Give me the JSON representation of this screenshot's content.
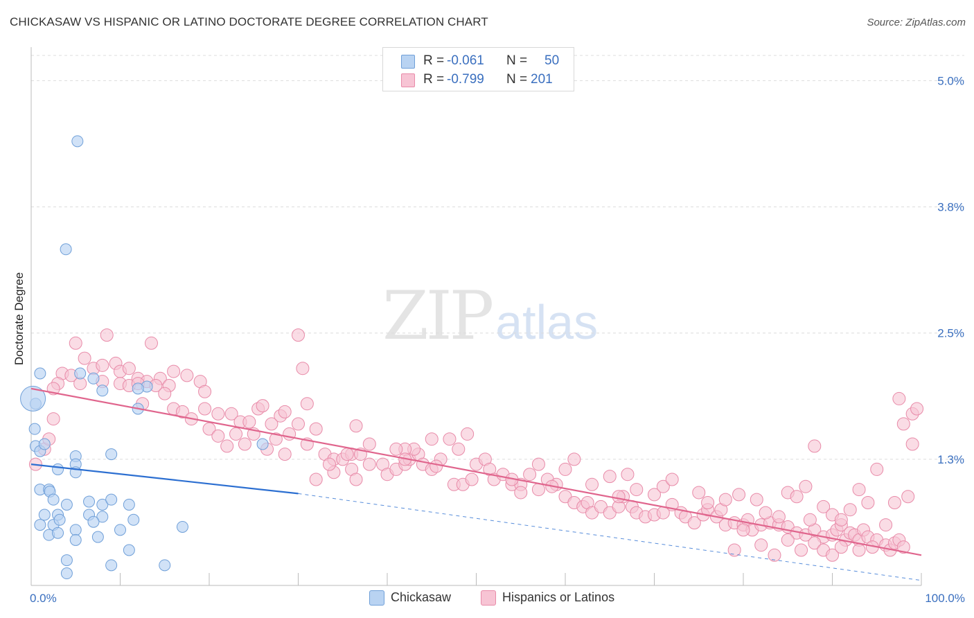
{
  "title": "CHICKASAW VS HISPANIC OR LATINO DOCTORATE DEGREE CORRELATION CHART",
  "source": "Source: ZipAtlas.com",
  "watermark": {
    "zip": "ZIP",
    "atlas": "atlas"
  },
  "legend_top": {
    "r_label": "R =",
    "n_label": "N =",
    "rows": [
      {
        "r": "-0.061",
        "n": "50"
      },
      {
        "r": "-0.799",
        "n": "201"
      }
    ]
  },
  "legend_bottom": [
    "Chickasaw",
    "Hispanics or Latinos"
  ],
  "chart_data": {
    "type": "scatter",
    "title": "CHICKASAW VS HISPANIC OR LATINO DOCTORATE DEGREE CORRELATION CHART",
    "xlabel": "",
    "ylabel": "Doctorate Degree",
    "xlim": [
      0,
      100
    ],
    "ylim": [
      0,
      5.25
    ],
    "x_tick_labels": [
      "0.0%",
      "100.0%"
    ],
    "y_ticks": [
      1.25,
      2.5,
      3.75,
      5.0
    ],
    "y_tick_labels": [
      "1.3%",
      "2.5%",
      "3.8%",
      "5.0%"
    ],
    "colors": {
      "chickasaw_fill": "#b9d3f2",
      "chickasaw_stroke": "#6f9fd8",
      "chickasaw_line": "#2c6fd1",
      "hispanic_fill": "#f7c4d4",
      "hispanic_stroke": "#e88aa8",
      "hispanic_line": "#e0658d",
      "axis_text": "#3a6fbf"
    },
    "series": [
      {
        "name": "Chickasaw",
        "r": -0.061,
        "n": 50,
        "trend": {
          "x0": 0,
          "y0": 1.2,
          "x1": 30,
          "y1": 0.91,
          "dash_to_x": 100,
          "dash_to_y": 0.05
        },
        "points": [
          [
            5.2,
            4.4
          ],
          [
            3.9,
            3.33
          ],
          [
            1,
            2.1
          ],
          [
            5.5,
            2.1
          ],
          [
            7,
            2.05
          ],
          [
            8,
            1.93
          ],
          [
            13,
            1.97
          ],
          [
            12,
            1.95
          ],
          [
            0.5,
            1.8
          ],
          [
            12,
            1.75
          ],
          [
            0.4,
            1.55
          ],
          [
            0.5,
            1.38
          ],
          [
            1,
            1.33
          ],
          [
            1.5,
            1.4
          ],
          [
            5,
            1.28
          ],
          [
            9,
            1.3
          ],
          [
            26,
            1.4
          ],
          [
            5,
            1.2
          ],
          [
            3,
            1.15
          ],
          [
            5,
            1.12
          ],
          [
            1,
            0.95
          ],
          [
            2,
            0.95
          ],
          [
            2.1,
            0.93
          ],
          [
            2.5,
            0.85
          ],
          [
            4,
            0.8
          ],
          [
            6.5,
            0.83
          ],
          [
            8,
            0.8
          ],
          [
            9,
            0.85
          ],
          [
            11,
            0.8
          ],
          [
            1.5,
            0.7
          ],
          [
            3,
            0.7
          ],
          [
            6.5,
            0.7
          ],
          [
            8,
            0.68
          ],
          [
            1,
            0.6
          ],
          [
            2.5,
            0.6
          ],
          [
            3.2,
            0.65
          ],
          [
            5,
            0.55
          ],
          [
            7,
            0.63
          ],
          [
            11.5,
            0.65
          ],
          [
            17,
            0.58
          ],
          [
            2,
            0.5
          ],
          [
            3,
            0.52
          ],
          [
            5,
            0.45
          ],
          [
            7.5,
            0.48
          ],
          [
            10,
            0.55
          ],
          [
            11,
            0.35
          ],
          [
            4,
            0.25
          ],
          [
            9,
            0.2
          ],
          [
            15,
            0.2
          ],
          [
            4,
            0.12
          ]
        ],
        "sizes_note": "one large point at x=0.2,y=1.85",
        "large_point": [
          0.2,
          1.85
        ]
      },
      {
        "name": "Hispanics or Latinos",
        "r": -0.799,
        "n": 201,
        "trend": {
          "x0": 0,
          "y0": 1.95,
          "x1": 100,
          "y1": 0.3
        },
        "points": [
          [
            5,
            2.4
          ],
          [
            8.5,
            2.48
          ],
          [
            30,
            2.48
          ],
          [
            13.5,
            2.4
          ],
          [
            6,
            2.25
          ],
          [
            9.5,
            2.2
          ],
          [
            7,
            2.15
          ],
          [
            8,
            2.18
          ],
          [
            10,
            2.12
          ],
          [
            11,
            2.15
          ],
          [
            12,
            2.05
          ],
          [
            13,
            2.02
          ],
          [
            14.5,
            2.05
          ],
          [
            16,
            2.12
          ],
          [
            17.5,
            2.08
          ],
          [
            19,
            2.02
          ],
          [
            3.5,
            2.1
          ],
          [
            4.5,
            2.08
          ],
          [
            3,
            2.0
          ],
          [
            5.5,
            2.0
          ],
          [
            2.5,
            1.95
          ],
          [
            8,
            2.02
          ],
          [
            10,
            2.0
          ],
          [
            11,
            1.98
          ],
          [
            12,
            2.0
          ],
          [
            14,
            1.98
          ],
          [
            15.5,
            1.98
          ],
          [
            19.5,
            1.92
          ],
          [
            30.5,
            2.15
          ],
          [
            0.5,
            1.2
          ],
          [
            1.5,
            1.35
          ],
          [
            2,
            1.45
          ],
          [
            2.5,
            1.65
          ],
          [
            12.5,
            1.8
          ],
          [
            15,
            1.9
          ],
          [
            16,
            1.75
          ],
          [
            17,
            1.72
          ],
          [
            18,
            1.65
          ],
          [
            19.5,
            1.75
          ],
          [
            21,
            1.7
          ],
          [
            22.5,
            1.7
          ],
          [
            23.5,
            1.62
          ],
          [
            24.5,
            1.62
          ],
          [
            25.5,
            1.75
          ],
          [
            26,
            1.78
          ],
          [
            27,
            1.6
          ],
          [
            28,
            1.68
          ],
          [
            28.5,
            1.72
          ],
          [
            29,
            1.5
          ],
          [
            30,
            1.6
          ],
          [
            31,
            1.8
          ],
          [
            32,
            1.55
          ],
          [
            20,
            1.55
          ],
          [
            21,
            1.48
          ],
          [
            22,
            1.38
          ],
          [
            23,
            1.5
          ],
          [
            24,
            1.4
          ],
          [
            25,
            1.5
          ],
          [
            26.5,
            1.35
          ],
          [
            27.5,
            1.45
          ],
          [
            28.5,
            1.3
          ],
          [
            31,
            1.4
          ],
          [
            33,
            1.3
          ],
          [
            34,
            1.25
          ],
          [
            35,
            1.25
          ],
          [
            36,
            1.3
          ],
          [
            37,
            1.3
          ],
          [
            38,
            1.2
          ],
          [
            36,
            1.15
          ],
          [
            34,
            1.12
          ],
          [
            36.5,
            1.05
          ],
          [
            32,
            1.05
          ],
          [
            33.5,
            1.2
          ],
          [
            35.5,
            1.3
          ],
          [
            36.5,
            1.58
          ],
          [
            38,
            1.4
          ],
          [
            39.5,
            1.2
          ],
          [
            40,
            1.1
          ],
          [
            41,
            1.15
          ],
          [
            42,
            1.2
          ],
          [
            42.5,
            1.25
          ],
          [
            43.5,
            1.3
          ],
          [
            44,
            1.2
          ],
          [
            45,
            1.15
          ],
          [
            46,
            1.25
          ],
          [
            43,
            1.35
          ],
          [
            45,
            1.45
          ],
          [
            42,
            1.35
          ],
          [
            41,
            1.35
          ],
          [
            42,
            1.25
          ],
          [
            47,
            1.45
          ],
          [
            48,
            1.35
          ],
          [
            49,
            1.5
          ],
          [
            45.5,
            1.18
          ],
          [
            47.5,
            1.0
          ],
          [
            48.5,
            1.0
          ],
          [
            49.5,
            1.05
          ],
          [
            50,
            1.2
          ],
          [
            51,
            1.25
          ],
          [
            51.5,
            1.15
          ],
          [
            52,
            1.05
          ],
          [
            53,
            1.1
          ],
          [
            54,
            1.0
          ],
          [
            55,
            1.0
          ],
          [
            56,
            1.1
          ],
          [
            57,
            1.2
          ],
          [
            58,
            1.05
          ],
          [
            59,
            1.0
          ],
          [
            60,
            1.15
          ],
          [
            55,
            0.92
          ],
          [
            54,
            1.05
          ],
          [
            57,
            0.95
          ],
          [
            58.5,
            0.98
          ],
          [
            60,
            0.88
          ],
          [
            61,
            0.82
          ],
          [
            62,
            0.78
          ],
          [
            62.5,
            0.82
          ],
          [
            63,
            0.72
          ],
          [
            64,
            0.78
          ],
          [
            65,
            0.72
          ],
          [
            66,
            0.78
          ],
          [
            66.5,
            0.88
          ],
          [
            67.5,
            0.78
          ],
          [
            68,
            0.72
          ],
          [
            69,
            0.68
          ],
          [
            70,
            0.7
          ],
          [
            71,
            0.72
          ],
          [
            72,
            0.8
          ],
          [
            73,
            0.72
          ],
          [
            73.5,
            0.68
          ],
          [
            74.5,
            0.62
          ],
          [
            75.5,
            0.7
          ],
          [
            76,
            0.75
          ],
          [
            77,
            0.68
          ],
          [
            78,
            0.6
          ],
          [
            79,
            0.62
          ],
          [
            80,
            0.6
          ],
          [
            80.5,
            0.65
          ],
          [
            81,
            0.55
          ],
          [
            82,
            0.6
          ],
          [
            83,
            0.62
          ],
          [
            84,
            0.6
          ],
          [
            85,
            0.58
          ],
          [
            86,
            0.52
          ],
          [
            87,
            0.5
          ],
          [
            88,
            0.55
          ],
          [
            89,
            0.48
          ],
          [
            90,
            0.5
          ],
          [
            90.5,
            0.55
          ],
          [
            91,
            0.6
          ],
          [
            91.5,
            0.45
          ],
          [
            92,
            0.52
          ],
          [
            92.5,
            0.5
          ],
          [
            93,
            0.45
          ],
          [
            93.5,
            0.55
          ],
          [
            94,
            0.48
          ],
          [
            95,
            0.45
          ],
          [
            96,
            0.4
          ],
          [
            96.5,
            0.35
          ],
          [
            97,
            0.42
          ],
          [
            97.5,
            0.45
          ],
          [
            98,
            0.38
          ],
          [
            61,
            1.25
          ],
          [
            63,
            1.0
          ],
          [
            65,
            1.08
          ],
          [
            66,
            0.88
          ],
          [
            67,
            1.1
          ],
          [
            68,
            0.95
          ],
          [
            70,
            0.9
          ],
          [
            71,
            0.98
          ],
          [
            72,
            1.05
          ],
          [
            75,
            0.92
          ],
          [
            76,
            0.82
          ],
          [
            77.5,
            0.75
          ],
          [
            78,
            0.85
          ],
          [
            79.5,
            0.9
          ],
          [
            81.5,
            0.85
          ],
          [
            82.5,
            0.72
          ],
          [
            84,
            0.68
          ],
          [
            85,
            0.92
          ],
          [
            86,
            0.88
          ],
          [
            87,
            0.98
          ],
          [
            87.5,
            0.65
          ],
          [
            88,
            1.38
          ],
          [
            89,
            0.78
          ],
          [
            90,
            0.7
          ],
          [
            91,
            0.65
          ],
          [
            92,
            0.75
          ],
          [
            93,
            0.95
          ],
          [
            94,
            0.82
          ],
          [
            95,
            1.15
          ],
          [
            96,
            0.6
          ],
          [
            97,
            0.82
          ],
          [
            98,
            1.6
          ],
          [
            99,
            1.7
          ],
          [
            99.5,
            1.75
          ],
          [
            99,
            1.4
          ],
          [
            97.5,
            1.85
          ],
          [
            98.5,
            0.88
          ],
          [
            80,
            0.55
          ],
          [
            79,
            0.35
          ],
          [
            82,
            0.4
          ],
          [
            83.5,
            0.3
          ],
          [
            85,
            0.45
          ],
          [
            86.5,
            0.35
          ],
          [
            88,
            0.42
          ],
          [
            89,
            0.35
          ],
          [
            90,
            0.3
          ],
          [
            91,
            0.38
          ],
          [
            93,
            0.35
          ],
          [
            94.5,
            0.38
          ]
        ]
      }
    ]
  }
}
